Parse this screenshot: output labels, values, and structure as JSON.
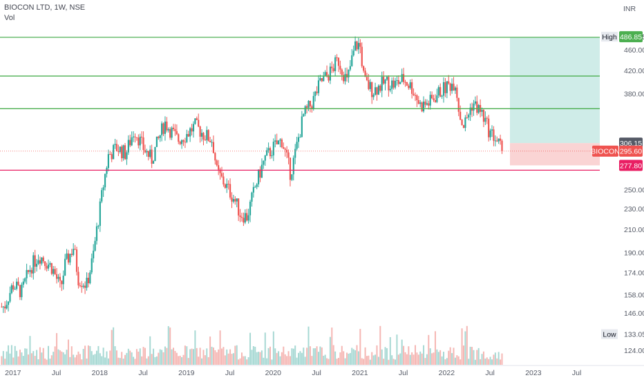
{
  "header": {
    "title": "BIOCON LTD, 1W, NSE",
    "subtitle": "Vol",
    "currency": "INR"
  },
  "colors": {
    "up": "#26a69a",
    "down": "#ef5350",
    "green_line": "#4caf50",
    "support_line": "#e91e63",
    "target_zone": "#cfece8",
    "stop_zone": "#fad4d4",
    "last_price": "#ef5350"
  },
  "chart_data": {
    "type": "candlestick",
    "title": "BIOCON LTD, 1W, NSE",
    "ylabel": "INR",
    "scale": "log",
    "ylim": [
      120,
      500
    ],
    "y_ticks": [
      124.0,
      133.05,
      146.0,
      158.0,
      174.0,
      190.0,
      210.0,
      230.0,
      250.0,
      380.0,
      420.0,
      460.0
    ],
    "x_ticks": [
      "2017",
      "Jul",
      "2018",
      "Jul",
      "2019",
      "Jul",
      "2020",
      "Jul",
      "2021",
      "Jul",
      "2022",
      "Jul",
      "2023",
      "Jul"
    ],
    "range": {
      "high": 486.95,
      "low": 133.05,
      "high_label": "High",
      "low_label": "Low"
    },
    "horizontal_levels": [
      {
        "label": "485.60",
        "value": 485.6,
        "color": "#4caf50"
      },
      {
        "label": "410.15",
        "value": 410.15,
        "color": "#4caf50"
      },
      {
        "label": "355.70",
        "value": 355.7,
        "color": "#4caf50"
      },
      {
        "label": "271.95",
        "value": 271.95,
        "color": "#e91e63"
      }
    ],
    "price_labels": [
      {
        "text": "486.95",
        "value": 486.95,
        "kind": "plain"
      },
      {
        "text": "486.85",
        "value": 486.85,
        "kind": "green"
      },
      {
        "text": "306.15",
        "value": 306.15,
        "kind": "gray"
      },
      {
        "text": "277.80",
        "value": 277.8,
        "kind": "red"
      }
    ],
    "last_price": {
      "symbol": "BIOCON",
      "value": 295.6,
      "text": "295.60"
    },
    "position": {
      "entry": 306.15,
      "target": 485.6,
      "stop": 277.8
    },
    "price_path": [
      [
        2016.9,
        150
      ],
      [
        2017.0,
        165
      ],
      [
        2017.1,
        160
      ],
      [
        2017.2,
        178
      ],
      [
        2017.3,
        188
      ],
      [
        2017.45,
        178
      ],
      [
        2017.55,
        162
      ],
      [
        2017.6,
        180
      ],
      [
        2017.7,
        195
      ],
      [
        2017.75,
        170
      ],
      [
        2017.85,
        165
      ],
      [
        2017.92,
        185
      ],
      [
        2018.0,
        228
      ],
      [
        2018.05,
        260
      ],
      [
        2018.1,
        290
      ],
      [
        2018.2,
        300
      ],
      [
        2018.3,
        292
      ],
      [
        2018.4,
        325
      ],
      [
        2018.5,
        300
      ],
      [
        2018.6,
        285
      ],
      [
        2018.75,
        335
      ],
      [
        2018.9,
        310
      ],
      [
        2019.0,
        318
      ],
      [
        2019.1,
        330
      ],
      [
        2019.2,
        318
      ],
      [
        2019.3,
        310
      ],
      [
        2019.35,
        270
      ],
      [
        2019.45,
        255
      ],
      [
        2019.55,
        240
      ],
      [
        2019.62,
        225
      ],
      [
        2019.7,
        222
      ],
      [
        2019.8,
        255
      ],
      [
        2019.9,
        285
      ],
      [
        2020.0,
        300
      ],
      [
        2020.1,
        310
      ],
      [
        2020.2,
        268
      ],
      [
        2020.25,
        290
      ],
      [
        2020.35,
        345
      ],
      [
        2020.45,
        365
      ],
      [
        2020.55,
        400
      ],
      [
        2020.65,
        415
      ],
      [
        2020.75,
        440
      ],
      [
        2020.85,
        400
      ],
      [
        2020.95,
        470
      ],
      [
        2021.0,
        470
      ],
      [
        2021.05,
        400
      ],
      [
        2021.15,
        385
      ],
      [
        2021.3,
        400
      ],
      [
        2021.4,
        395
      ],
      [
        2021.5,
        405
      ],
      [
        2021.6,
        390
      ],
      [
        2021.7,
        360
      ],
      [
        2021.8,
        365
      ],
      [
        2021.9,
        380
      ],
      [
        2022.0,
        392
      ],
      [
        2022.1,
        400
      ],
      [
        2022.15,
        345
      ],
      [
        2022.2,
        330
      ],
      [
        2022.3,
        365
      ],
      [
        2022.4,
        350
      ],
      [
        2022.5,
        320
      ],
      [
        2022.55,
        315
      ],
      [
        2022.6,
        305
      ],
      [
        2022.65,
        295.6
      ]
    ],
    "volume_max": 1.0
  }
}
